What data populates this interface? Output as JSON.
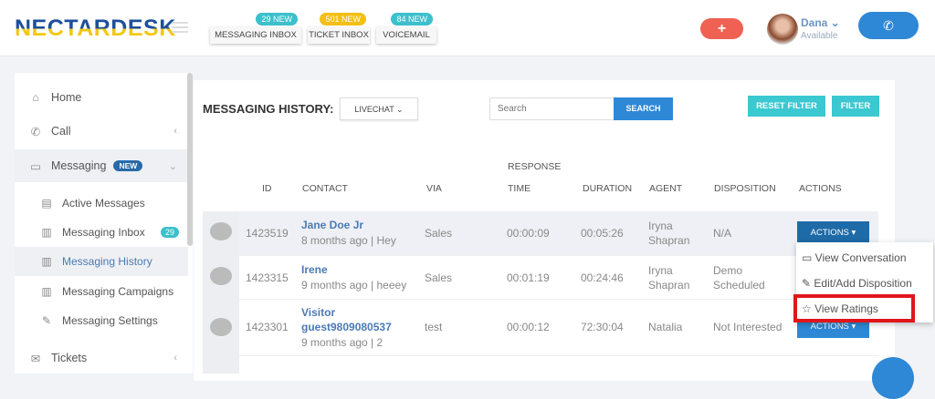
{
  "header": {
    "logo": "NECTARDESK",
    "inboxes": [
      {
        "label": "MESSAGING INBOX",
        "badge": "29 NEW",
        "color": "#3cc0cc"
      },
      {
        "label": "TICKET INBOX",
        "badge": "501 NEW",
        "color": "#f2bf14"
      },
      {
        "label": "VOICEMAIL",
        "badge": "84 NEW",
        "color": "#3cc0cc"
      }
    ],
    "plus": "+",
    "user": {
      "name": "Dana ⌄",
      "status": "Available"
    },
    "phone_icon": "phone-icon"
  },
  "sidebar": {
    "items": [
      {
        "label": "Home"
      },
      {
        "label": "Call"
      },
      {
        "label": "Messaging",
        "badge": "NEW"
      },
      {
        "label": "Active Messages"
      },
      {
        "label": "Messaging Inbox",
        "count": "29"
      },
      {
        "label": "Messaging History"
      },
      {
        "label": "Messaging Campaigns"
      },
      {
        "label": "Messaging Settings"
      },
      {
        "label": "Tickets"
      }
    ]
  },
  "main": {
    "title": "MESSAGING HISTORY:",
    "channel": "LIVECHAT ⌄",
    "search_placeholder": "Search",
    "search_btn": "SEARCH",
    "reset_filter": "RESET FILTER",
    "filter": "FILTER",
    "columns": {
      "id": "ID",
      "contact": "CONTACT",
      "via": "VIA",
      "response": "RESPONSE",
      "time": "TIME",
      "duration": "DURATION",
      "agent": "AGENT",
      "disposition": "DISPOSITION",
      "actions": "ACTIONS"
    },
    "rows": [
      {
        "id": "1423519",
        "name": "Jane Doe Jr",
        "meta": "8 months ago | Hey",
        "via": "Sales",
        "time": "00:00:09",
        "duration": "00:05:26",
        "agent": "Iryna Shapran",
        "disposition": "N/A",
        "action": "ACTIONS ▾"
      },
      {
        "id": "1423315",
        "name": "Irene",
        "meta": "9 months ago | heeey",
        "via": "Sales",
        "time": "00:01:19",
        "duration": "00:24:46",
        "agent": "Iryna Shapran",
        "disposition": "Demo Scheduled",
        "action": ""
      },
      {
        "id": "1423301",
        "name": "Visitor guest9809080537",
        "meta": "9 months ago | 2",
        "via": "test",
        "time": "00:00:12",
        "duration": "72:30:04",
        "agent": "Natalia",
        "disposition": "Not Interested",
        "action": "ACTIONS ▾"
      }
    ],
    "menu": [
      "View Conversation",
      "Edit/Add Disposition",
      "View Ratings"
    ]
  },
  "colors": {
    "accent": "#2e88d6",
    "teal": "#3cc8d0",
    "highlight": "#e0151c"
  }
}
